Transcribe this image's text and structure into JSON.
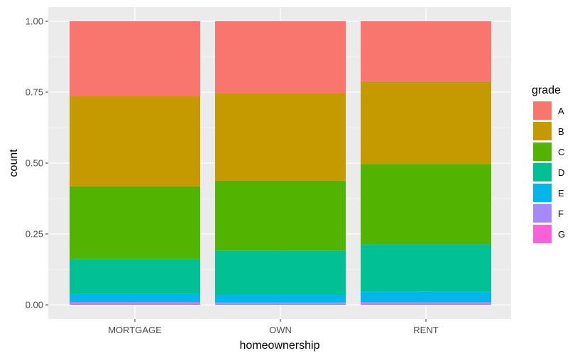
{
  "chart_data": {
    "type": "bar",
    "stacked": true,
    "xlabel": "homeownership",
    "ylabel": "count",
    "categories": [
      "MORTGAGE",
      "OWN",
      "RENT"
    ],
    "ylim": [
      0,
      1
    ],
    "yticks": [
      "0.00",
      "0.25",
      "0.50",
      "0.75",
      "1.00"
    ],
    "grid": true,
    "legend_title": "grade",
    "legend_position": "right",
    "series": [
      {
        "name": "A",
        "color": "#F8766D",
        "values": [
          0.265,
          0.255,
          0.212
        ]
      },
      {
        "name": "B",
        "color": "#C49A00",
        "values": [
          0.317,
          0.307,
          0.292
        ]
      },
      {
        "name": "C",
        "color": "#53B400",
        "values": [
          0.257,
          0.246,
          0.282
        ]
      },
      {
        "name": "D",
        "color": "#00C094",
        "values": [
          0.122,
          0.157,
          0.167
        ]
      },
      {
        "name": "E",
        "color": "#00B6EB",
        "values": [
          0.029,
          0.027,
          0.038
        ]
      },
      {
        "name": "F",
        "color": "#A58AFF",
        "values": [
          0.006,
          0.005,
          0.005
        ]
      },
      {
        "name": "G",
        "color": "#FB61D7",
        "values": [
          0.004,
          0.003,
          0.004
        ]
      }
    ]
  }
}
